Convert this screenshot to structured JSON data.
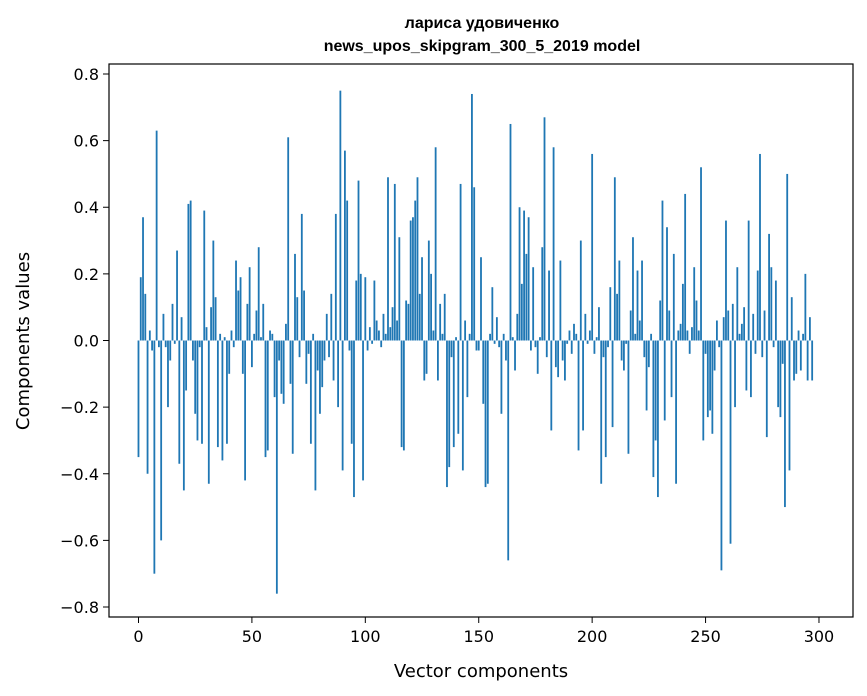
{
  "chart_data": {
    "type": "bar",
    "title": "лариса удовиченко",
    "subtitle": "news_upos_skipgram_300_5_2019 model",
    "xlabel": "Vector components",
    "ylabel": "Components values",
    "xlim": [
      -13,
      315
    ],
    "ylim": [
      -0.83,
      0.83
    ],
    "x_ticks": [
      0,
      50,
      100,
      150,
      200,
      250,
      300
    ],
    "x_tick_labels": [
      "0",
      "50",
      "100",
      "150",
      "200",
      "250",
      "300"
    ],
    "y_ticks": [
      -0.8,
      -0.6,
      -0.4,
      -0.2,
      0.0,
      0.2,
      0.4,
      0.6,
      0.8
    ],
    "y_tick_labels": [
      "−0.8",
      "−0.6",
      "−0.4",
      "−0.2",
      "0.0",
      "0.2",
      "0.4",
      "0.6",
      "0.8"
    ],
    "bar_color": "#1f77b4",
    "grid": false,
    "values": [
      -0.35,
      0.19,
      0.37,
      0.14,
      -0.4,
      0.03,
      -0.03,
      -0.7,
      0.63,
      -0.02,
      -0.6,
      0.08,
      -0.02,
      -0.2,
      -0.06,
      0.11,
      -0.01,
      0.27,
      -0.37,
      0.07,
      -0.45,
      -0.15,
      0.41,
      0.42,
      -0.06,
      -0.22,
      -0.3,
      -0.02,
      -0.31,
      0.39,
      0.04,
      -0.43,
      0.1,
      0.3,
      0.13,
      -0.32,
      0.02,
      -0.36,
      0.01,
      -0.31,
      -0.1,
      0.03,
      -0.02,
      0.24,
      0.15,
      0.19,
      -0.1,
      -0.42,
      0.11,
      0.22,
      -0.08,
      0.02,
      0.09,
      0.28,
      0.01,
      0.11,
      -0.35,
      -0.33,
      0.03,
      0.02,
      -0.17,
      -0.76,
      -0.06,
      -0.16,
      -0.19,
      0.05,
      0.61,
      -0.13,
      -0.34,
      0.26,
      0.13,
      -0.05,
      0.38,
      0.15,
      -0.13,
      -0.04,
      -0.31,
      0.02,
      -0.45,
      -0.09,
      -0.22,
      -0.14,
      -0.06,
      0.08,
      -0.05,
      0.14,
      -0.12,
      0.38,
      -0.2,
      0.75,
      -0.39,
      0.57,
      0.42,
      -0.03,
      -0.31,
      -0.47,
      0.18,
      0.48,
      0.2,
      -0.42,
      0.19,
      -0.03,
      0.04,
      -0.01,
      0.18,
      0.06,
      0.03,
      -0.02,
      0.08,
      0.02,
      0.49,
      0.04,
      0.1,
      0.47,
      0.06,
      0.31,
      -0.32,
      -0.33,
      0.12,
      0.11,
      0.36,
      0.37,
      0.42,
      0.49,
      0.14,
      0.25,
      -0.12,
      -0.1,
      0.3,
      0.2,
      0.03,
      0.58,
      -0.12,
      0.11,
      0.02,
      0.14,
      -0.44,
      -0.38,
      -0.05,
      -0.32,
      0.01,
      -0.28,
      0.47,
      -0.39,
      0.06,
      -0.17,
      0.02,
      0.74,
      0.46,
      -0.03,
      -0.03,
      0.25,
      -0.19,
      -0.44,
      -0.43,
      0.02,
      0.16,
      -0.01,
      0.07,
      -0.02,
      -0.22,
      0.02,
      -0.06,
      -0.66,
      0.65,
      0.01,
      -0.09,
      0.08,
      0.4,
      0.17,
      0.39,
      0.26,
      0.37,
      -0.03,
      0.22,
      -0.02,
      -0.1,
      0.01,
      0.28,
      0.67,
      -0.05,
      0.21,
      -0.27,
      0.58,
      -0.08,
      -0.11,
      0.24,
      -0.06,
      -0.12,
      -0.01,
      0.03,
      -0.04,
      0.05,
      0.02,
      -0.33,
      0.3,
      -0.27,
      0.08,
      -0.01,
      0.03,
      0.56,
      -0.04,
      0.01,
      0.1,
      -0.43,
      -0.05,
      -0.35,
      -0.02,
      0.16,
      -0.26,
      0.49,
      0.14,
      0.24,
      -0.06,
      -0.09,
      -0.01,
      -0.34,
      0.09,
      0.31,
      0.02,
      0.21,
      0.06,
      0.24,
      -0.05,
      -0.21,
      -0.08,
      0.02,
      -0.41,
      -0.3,
      -0.47,
      0.12,
      0.42,
      -0.24,
      0.34,
      0.09,
      -0.17,
      0.26,
      -0.43,
      0.03,
      0.05,
      0.17,
      0.44,
      0.03,
      -0.04,
      0.04,
      0.22,
      0.12,
      0.03,
      0.52,
      -0.3,
      -0.04,
      -0.23,
      -0.21,
      -0.28,
      -0.09,
      0.06,
      -0.02,
      -0.69,
      0.07,
      0.36,
      0.09,
      -0.61,
      0.11,
      -0.2,
      0.22,
      0.02,
      0.05,
      0.1,
      -0.15,
      0.36,
      -0.17,
      0.08,
      -0.04,
      0.21,
      0.56,
      -0.05,
      0.09,
      -0.29,
      0.32,
      0.22,
      -0.02,
      0.18,
      -0.2,
      -0.23,
      -0.07,
      -0.5,
      0.5,
      -0.39,
      0.13,
      -0.12,
      -0.1,
      0.03,
      -0.09,
      0.02,
      0.2,
      -0.12,
      0.07,
      -0.12
    ]
  }
}
